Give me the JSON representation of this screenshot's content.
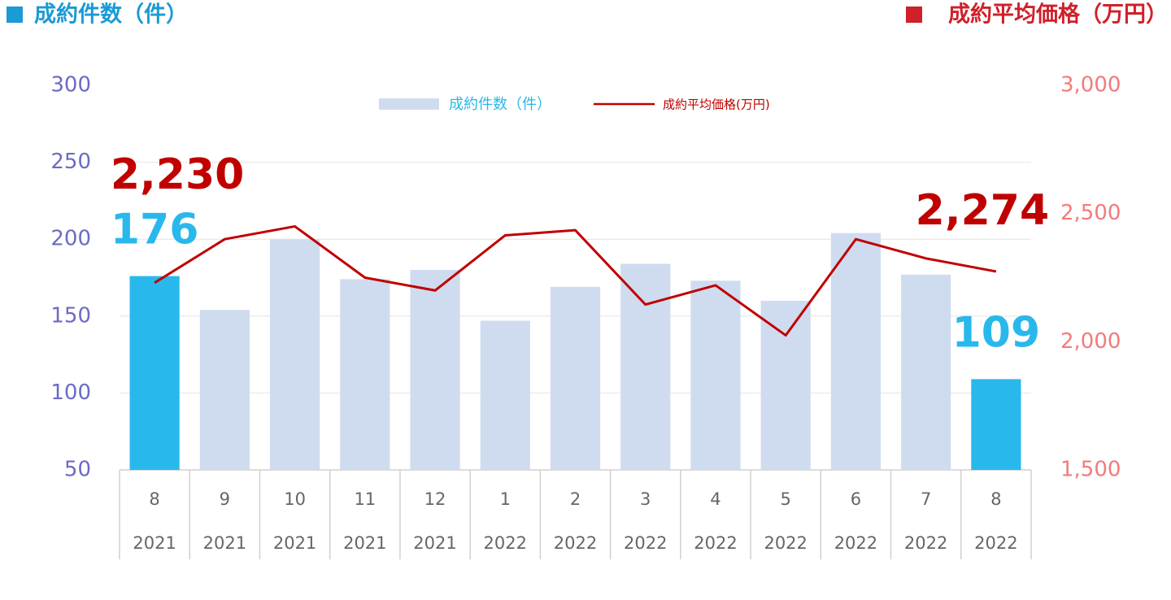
{
  "chart_data": {
    "type": "bar_line",
    "left_title": "成約件数（件）",
    "right_title": "成約平均価格（万円）",
    "categories": [
      [
        "8",
        "2021"
      ],
      [
        "9",
        "2021"
      ],
      [
        "10",
        "2021"
      ],
      [
        "11",
        "2021"
      ],
      [
        "12",
        "2021"
      ],
      [
        "1",
        "2022"
      ],
      [
        "2",
        "2022"
      ],
      [
        "3",
        "2022"
      ],
      [
        "4",
        "2022"
      ],
      [
        "5",
        "2022"
      ],
      [
        "6",
        "2022"
      ],
      [
        "7",
        "2022"
      ],
      [
        "8",
        "2022"
      ]
    ],
    "series": [
      {
        "name": "成約件数（件）",
        "type": "bar",
        "color": "#cfdcf0",
        "colors": [
          "#29b8ec",
          "#cfdcf0",
          "#cfdcf0",
          "#cfdcf0",
          "#cfdcf0",
          "#cfdcf0",
          "#cfdcf0",
          "#cfdcf0",
          "#cfdcf0",
          "#cfdcf0",
          "#cfdcf0",
          "#cfdcf0",
          "#29b8ec"
        ],
        "values": [
          176,
          154,
          200,
          174,
          180,
          147,
          169,
          184,
          173,
          160,
          204,
          177,
          109
        ]
      },
      {
        "name": "成約平均価格(万円)",
        "type": "line",
        "axis": "y2",
        "color": "#c00000",
        "values": [
          2230,
          2400,
          2450,
          2250,
          2200,
          2415,
          2435,
          2145,
          2220,
          2025,
          2400,
          2325,
          2274
        ],
        "value_labels": [
          "2,230",
          null,
          null,
          null,
          null,
          null,
          null,
          null,
          null,
          null,
          null,
          null,
          "2,274"
        ]
      }
    ],
    "ylim": [
      50,
      300
    ],
    "yticks": [
      50,
      100,
      150,
      200,
      250,
      300
    ],
    "y2lim": [
      1500,
      3000
    ],
    "y2ticks": [
      {
        "value": 1500,
        "label": "1,500"
      },
      {
        "value": 2000,
        "label": "2,000"
      },
      {
        "value": 2500,
        "label": "2,500"
      },
      {
        "value": 3000,
        "label": "3,000"
      }
    ],
    "grid": true,
    "legend": "top"
  }
}
